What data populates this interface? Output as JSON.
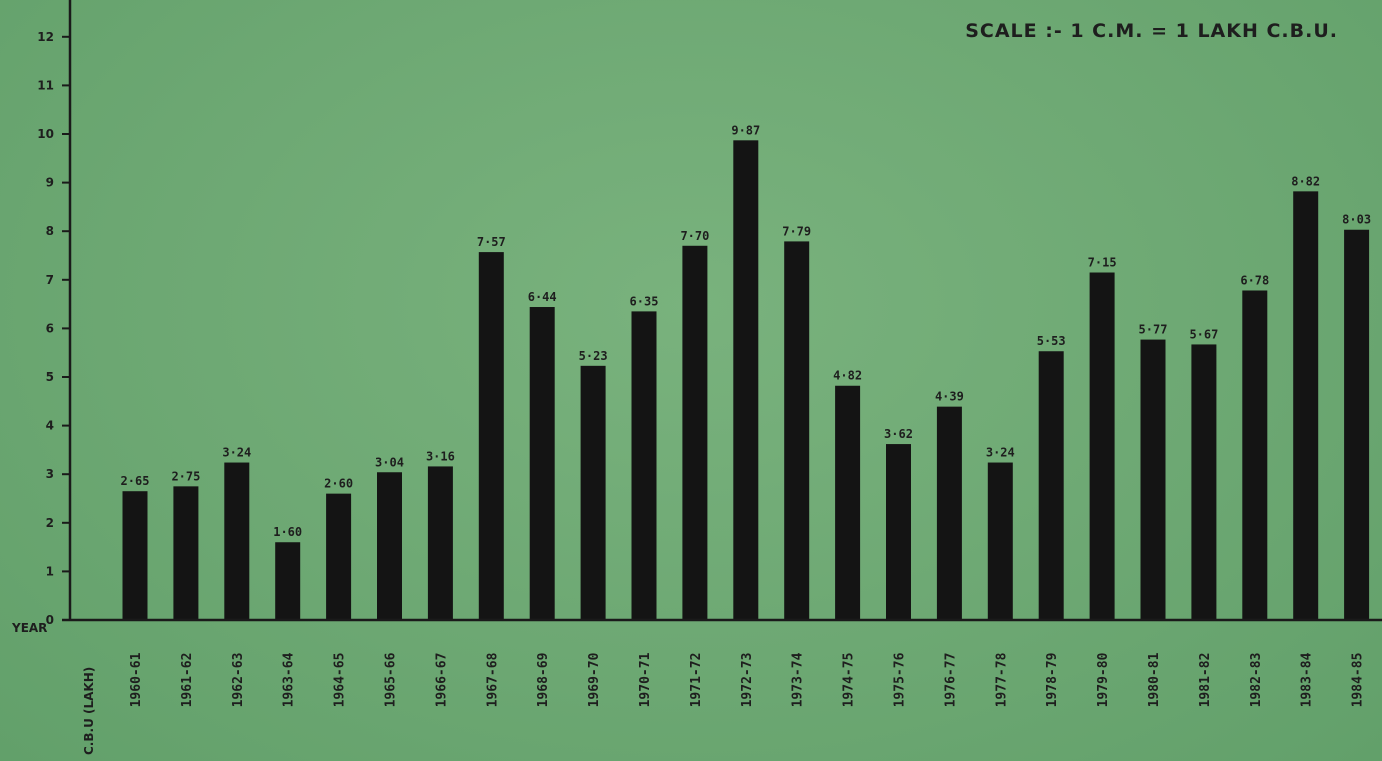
{
  "scale_note": "SCALE :- 1 C.M. = 1 LAKH C.B.U.",
  "x_axis_word": "YEAR",
  "y_axis_word": "C.B.U (LAKH)",
  "chart_data": {
    "type": "bar",
    "title": "",
    "xlabel": "YEAR",
    "ylabel": "C.B.U (LAKH)",
    "ylim": [
      0,
      12
    ],
    "yticks": [
      0,
      1,
      2,
      3,
      4,
      5,
      6,
      7,
      8,
      9,
      10,
      11,
      12
    ],
    "grid": false,
    "bar_color": "#141414",
    "categories": [
      "1960-61",
      "1961-62",
      "1962-63",
      "1963-64",
      "1964-65",
      "1965-66",
      "1966-67",
      "1967-68",
      "1968-69",
      "1969-70",
      "1970-71",
      "1971-72",
      "1972-73",
      "1973-74",
      "1974-75",
      "1975-76",
      "1976-77",
      "1977-78",
      "1978-79",
      "1979-80",
      "1980-81",
      "1981-82",
      "1982-83",
      "1983-84",
      "1984-85"
    ],
    "values": [
      2.65,
      2.75,
      3.24,
      1.6,
      2.6,
      3.04,
      3.16,
      7.57,
      6.44,
      5.23,
      6.35,
      7.7,
      9.87,
      7.79,
      4.82,
      3.62,
      4.39,
      3.24,
      5.53,
      7.15,
      5.77,
      5.67,
      6.78,
      8.82,
      8.03
    ],
    "data_labels": [
      "2·65",
      "2·75",
      "3·24",
      "1·60",
      "2·60",
      "3·04",
      "3·16",
      "7·57",
      "6·44",
      "5·23",
      "6·35",
      "7·70",
      "9·87",
      "7·79",
      "4·82",
      "3·62",
      "4·39",
      "3·24",
      "5·53",
      "7·15",
      "5·77",
      "5·67",
      "6·78",
      "8·82",
      "8·03"
    ]
  }
}
